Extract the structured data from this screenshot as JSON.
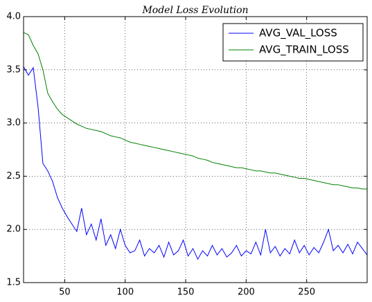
{
  "chart_data": {
    "type": "line",
    "title": "Model Loss Evolution",
    "x": [
      16,
      20,
      24,
      28,
      32,
      36,
      40,
      44,
      48,
      52,
      56,
      60,
      64,
      68,
      72,
      76,
      80,
      84,
      88,
      92,
      96,
      100,
      104,
      108,
      112,
      116,
      120,
      124,
      128,
      132,
      136,
      140,
      144,
      148,
      152,
      156,
      160,
      164,
      168,
      172,
      176,
      180,
      184,
      188,
      192,
      196,
      200,
      204,
      208,
      212,
      216,
      220,
      224,
      228,
      232,
      236,
      240,
      244,
      248,
      252,
      256,
      260,
      264,
      268,
      272,
      276,
      280,
      284,
      288,
      292,
      296,
      300
    ],
    "series": [
      {
        "name": "AVG_VAL_LOSS",
        "color": "#0000ff",
        "values": [
          3.53,
          3.45,
          3.52,
          3.15,
          2.62,
          2.55,
          2.45,
          2.3,
          2.2,
          2.12,
          2.05,
          1.98,
          2.2,
          1.95,
          2.05,
          1.9,
          2.1,
          1.85,
          1.95,
          1.82,
          2.0,
          1.85,
          1.78,
          1.8,
          1.9,
          1.75,
          1.82,
          1.78,
          1.85,
          1.74,
          1.88,
          1.76,
          1.8,
          1.9,
          1.75,
          1.82,
          1.72,
          1.8,
          1.75,
          1.85,
          1.76,
          1.82,
          1.74,
          1.78,
          1.85,
          1.75,
          1.8,
          1.77,
          1.88,
          1.76,
          2.0,
          1.78,
          1.84,
          1.75,
          1.82,
          1.77,
          1.9,
          1.78,
          1.85,
          1.76,
          1.83,
          1.78,
          1.88,
          2.0,
          1.8,
          1.85,
          1.78,
          1.86,
          1.77,
          1.88,
          1.82,
          1.76
        ]
      },
      {
        "name": "AVG_TRAIN_LOSS",
        "color": "#008000",
        "values": [
          3.85,
          3.83,
          3.73,
          3.65,
          3.5,
          3.28,
          3.2,
          3.13,
          3.08,
          3.05,
          3.02,
          2.99,
          2.97,
          2.95,
          2.94,
          2.93,
          2.92,
          2.9,
          2.88,
          2.87,
          2.86,
          2.84,
          2.82,
          2.81,
          2.8,
          2.79,
          2.78,
          2.77,
          2.76,
          2.75,
          2.74,
          2.73,
          2.72,
          2.71,
          2.7,
          2.69,
          2.67,
          2.66,
          2.65,
          2.63,
          2.62,
          2.61,
          2.6,
          2.59,
          2.58,
          2.58,
          2.57,
          2.56,
          2.55,
          2.55,
          2.54,
          2.53,
          2.53,
          2.52,
          2.51,
          2.5,
          2.49,
          2.48,
          2.48,
          2.47,
          2.46,
          2.45,
          2.44,
          2.43,
          2.42,
          2.42,
          2.41,
          2.4,
          2.39,
          2.39,
          2.38,
          2.38
        ]
      }
    ],
    "xlim": [
      16,
      300
    ],
    "xticks": [
      50,
      100,
      150,
      200,
      250
    ],
    "ylim": [
      1.5,
      4.0
    ],
    "yticks": [
      {
        "value": 1.5,
        "label": "1.5"
      },
      {
        "value": 2.0,
        "label": "2.0"
      },
      {
        "value": 2.5,
        "label": "2.5"
      },
      {
        "value": 3.0,
        "label": "3.0"
      },
      {
        "value": 3.5,
        "label": "3.5"
      },
      {
        "value": 4.0,
        "label": "4.0"
      }
    ],
    "grid": true,
    "legend": "upper right"
  }
}
